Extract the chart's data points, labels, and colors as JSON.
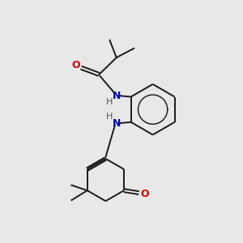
{
  "bg_color": "#e8e8e8",
  "bond_color": "#1a1a1a",
  "N_color": "#0000cc",
  "O_color": "#dd0000",
  "H_color": "#555555",
  "bond_width": 1.4,
  "font_size": 9,
  "figsize": [
    3.0,
    3.0
  ],
  "dpi": 100,
  "xlim": [
    0,
    10
  ],
  "ylim": [
    0,
    10
  ]
}
